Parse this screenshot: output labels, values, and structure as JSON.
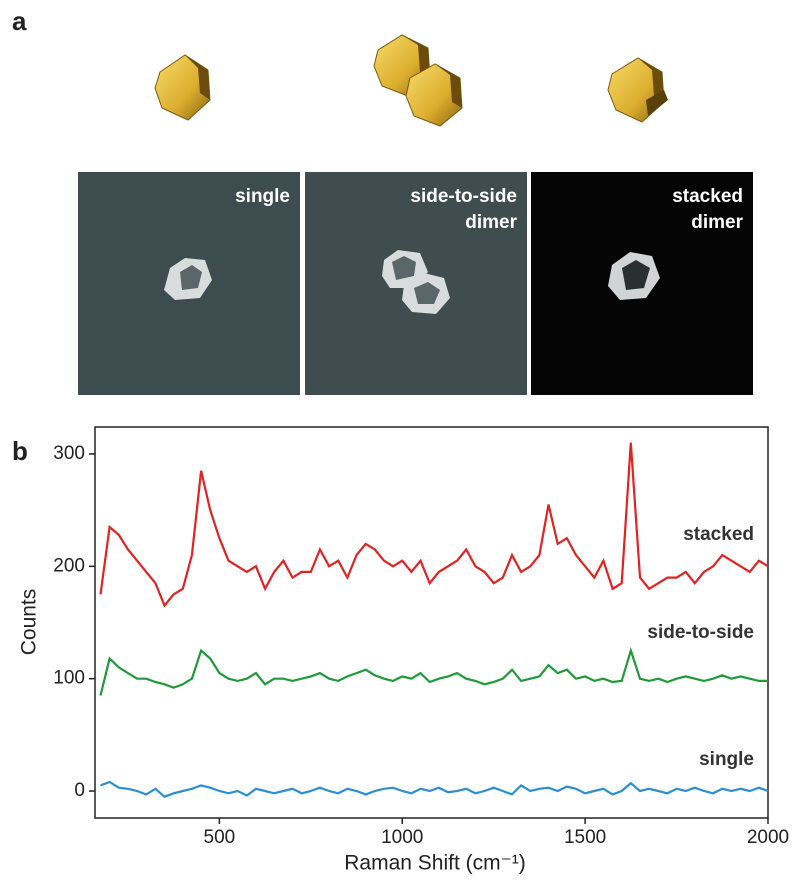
{
  "panels": [
    "a",
    "b"
  ],
  "images": [
    {
      "label_lines": [
        "single"
      ]
    },
    {
      "label_lines": [
        "side-to-side",
        "dimer"
      ]
    },
    {
      "label_lines": [
        "stacked",
        "dimer"
      ]
    }
  ],
  "chart_data": {
    "type": "line",
    "xlabel": "Raman Shift (cm⁻¹)",
    "ylabel": "Counts",
    "x": [
      175,
      200,
      225,
      250,
      275,
      300,
      325,
      350,
      375,
      400,
      425,
      450,
      475,
      500,
      525,
      550,
      575,
      600,
      625,
      650,
      675,
      700,
      725,
      750,
      775,
      800,
      825,
      850,
      875,
      900,
      925,
      950,
      975,
      1000,
      1025,
      1050,
      1075,
      1100,
      1125,
      1150,
      1175,
      1200,
      1225,
      1250,
      1275,
      1300,
      1325,
      1350,
      1375,
      1400,
      1425,
      1450,
      1475,
      1500,
      1525,
      1550,
      1575,
      1600,
      1625,
      1650,
      1675,
      1700,
      1725,
      1750,
      1775,
      1800,
      1825,
      1850,
      1875,
      1900,
      1925,
      1950,
      1975,
      2000
    ],
    "series": [
      {
        "name": "stacked",
        "color": "#e32222",
        "values": [
          175,
          235,
          228,
          215,
          205,
          195,
          185,
          165,
          175,
          180,
          210,
          285,
          250,
          225,
          205,
          200,
          195,
          200,
          180,
          195,
          205,
          190,
          195,
          195,
          215,
          200,
          205,
          190,
          210,
          220,
          215,
          205,
          200,
          205,
          195,
          205,
          185,
          195,
          200,
          205,
          215,
          200,
          195,
          185,
          190,
          210,
          195,
          200,
          210,
          255,
          220,
          225,
          210,
          200,
          190,
          205,
          180,
          185,
          310,
          190,
          180,
          185,
          190,
          190,
          195,
          185,
          195,
          200,
          210,
          205,
          200,
          195,
          205,
          200
        ]
      },
      {
        "name": "side-to-side",
        "color": "#1f9a3a",
        "values": [
          85,
          118,
          110,
          105,
          100,
          100,
          97,
          95,
          92,
          95,
          100,
          125,
          118,
          105,
          100,
          98,
          100,
          105,
          95,
          100,
          100,
          98,
          100,
          102,
          105,
          100,
          98,
          102,
          105,
          108,
          103,
          100,
          98,
          102,
          100,
          105,
          97,
          100,
          102,
          105,
          100,
          98,
          95,
          97,
          100,
          108,
          98,
          100,
          102,
          112,
          105,
          108,
          100,
          102,
          98,
          100,
          97,
          98,
          125,
          100,
          98,
          100,
          97,
          100,
          102,
          100,
          98,
          100,
          103,
          100,
          102,
          100,
          98,
          98
        ]
      },
      {
        "name": "single",
        "color": "#2b8fd0",
        "values": [
          5,
          8,
          3,
          2,
          0,
          -3,
          2,
          -5,
          -2,
          0,
          2,
          5,
          3,
          0,
          -2,
          0,
          -4,
          2,
          0,
          -2,
          0,
          2,
          -2,
          0,
          3,
          0,
          -2,
          2,
          0,
          -3,
          0,
          2,
          3,
          0,
          -2,
          2,
          0,
          3,
          -1,
          0,
          2,
          -2,
          0,
          3,
          0,
          -3,
          5,
          0,
          2,
          3,
          0,
          4,
          2,
          -2,
          0,
          2,
          -3,
          0,
          7,
          0,
          2,
          0,
          -2,
          2,
          0,
          3,
          0,
          -2,
          2,
          0,
          2,
          0,
          3,
          0
        ]
      }
    ],
    "xlim": [
      160,
      2000
    ],
    "xticks": [
      500,
      1000,
      1500,
      2000
    ],
    "ylim": [
      -24,
      324
    ],
    "yticks": [
      0,
      100,
      200,
      300
    ],
    "grid": false
  }
}
